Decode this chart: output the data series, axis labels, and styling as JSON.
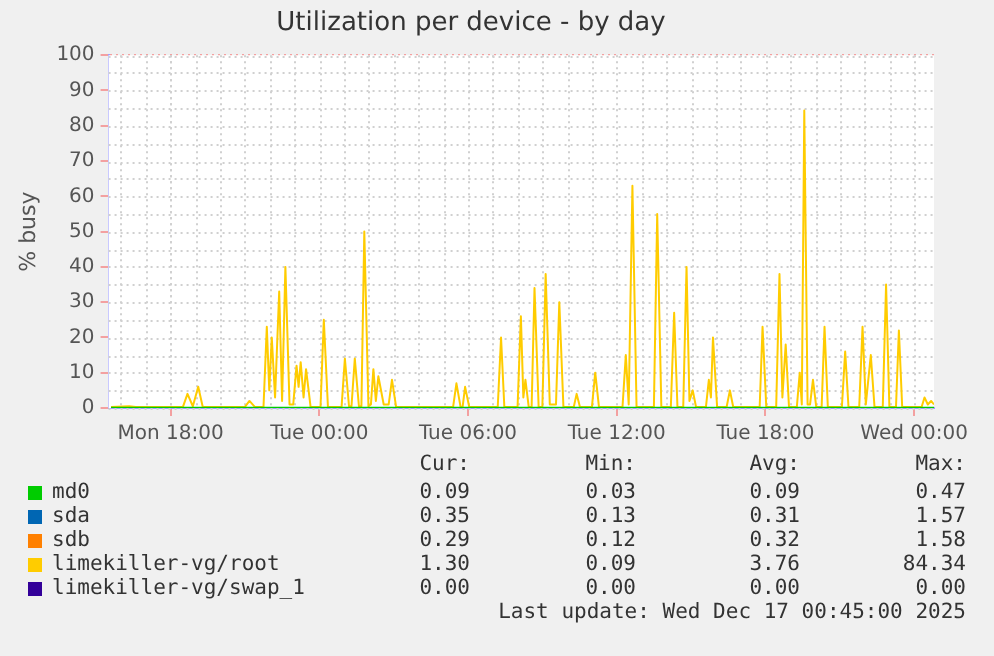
{
  "chart_data": {
    "type": "line",
    "title": "Utilization per device - by day",
    "ylabel": "% busy",
    "xlim": [
      "2025-12-15T15:30",
      "2025-12-17T00:48"
    ],
    "xticks": [
      {
        "value": "2025-12-15T18:00",
        "label": "Mon 18:00"
      },
      {
        "value": "2025-12-16T00:00",
        "label": "Tue 00:00"
      },
      {
        "value": "2025-12-16T06:00",
        "label": "Tue 06:00"
      },
      {
        "value": "2025-12-16T12:00",
        "label": "Tue 12:00"
      },
      {
        "value": "2025-12-16T18:00",
        "label": "Tue 18:00"
      },
      {
        "value": "2025-12-17T00:00",
        "label": "Wed 00:00"
      }
    ],
    "ylim": [
      0,
      100
    ],
    "yticks": [
      0,
      10,
      20,
      30,
      40,
      50,
      60,
      70,
      80,
      90,
      100
    ],
    "grid": true,
    "legend": "bottom",
    "marker": "none",
    "line_style": "solid",
    "series": [
      {
        "name": "md0",
        "color": "#00cc00",
        "x": [
          "2025-12-15T15:36",
          "2025-12-17T00:48"
        ],
        "values": [
          0.1,
          0.1
        ]
      },
      {
        "name": "sda",
        "color": "#0066b3"
      },
      {
        "name": "sdb",
        "color": "#ff8000"
      },
      {
        "name": "limekiller-vg/root",
        "color": "#ffcc00",
        "x": [
          "2025-12-15T15:36",
          "2025-12-15T16:20",
          "2025-12-15T16:36",
          "2025-12-15T18:30",
          "2025-12-15T18:41",
          "2025-12-15T18:54",
          "2025-12-15T19:07",
          "2025-12-15T19:18",
          "2025-12-15T21:00",
          "2025-12-15T21:11",
          "2025-12-15T21:24",
          "2025-12-15T21:45",
          "2025-12-15T21:53",
          "2025-12-15T21:59",
          "2025-12-15T22:05",
          "2025-12-15T22:13",
          "2025-12-15T22:23",
          "2025-12-15T22:30",
          "2025-12-15T22:38",
          "2025-12-15T22:48",
          "2025-12-15T22:57",
          "2025-12-15T23:05",
          "2025-12-15T23:10",
          "2025-12-15T23:15",
          "2025-12-15T23:22",
          "2025-12-15T23:28",
          "2025-12-15T23:39",
          "2025-12-16T00:03",
          "2025-12-16T00:11",
          "2025-12-16T00:21",
          "2025-12-16T00:54",
          "2025-12-16T01:02",
          "2025-12-16T01:12",
          "2025-12-16T01:18",
          "2025-12-16T01:26",
          "2025-12-16T01:36",
          "2025-12-16T01:42",
          "2025-12-16T01:49",
          "2025-12-16T01:59",
          "2025-12-16T02:05",
          "2025-12-16T02:11",
          "2025-12-16T02:17",
          "2025-12-16T02:23",
          "2025-12-16T02:36",
          "2025-12-16T02:48",
          "2025-12-16T02:56",
          "2025-12-16T03:06",
          "2025-12-16T05:24",
          "2025-12-16T05:32",
          "2025-12-16T05:42",
          "2025-12-16T05:47",
          "2025-12-16T05:53",
          "2025-12-16T06:03",
          "2025-12-16T07:12",
          "2025-12-16T07:20",
          "2025-12-16T07:28",
          "2025-12-16T08:00",
          "2025-12-16T08:08",
          "2025-12-16T08:14",
          "2025-12-16T08:19",
          "2025-12-16T08:27",
          "2025-12-16T08:34",
          "2025-12-16T08:41",
          "2025-12-16T08:51",
          "2025-12-16T09:00",
          "2025-12-16T09:08",
          "2025-12-16T09:18",
          "2025-12-16T09:33",
          "2025-12-16T09:41",
          "2025-12-16T09:51",
          "2025-12-16T10:16",
          "2025-12-16T10:23",
          "2025-12-16T10:31",
          "2025-12-16T11:00",
          "2025-12-16T11:08",
          "2025-12-16T11:17",
          "2025-12-16T12:14",
          "2025-12-16T12:22",
          "2025-12-16T12:29",
          "2025-12-16T12:38",
          "2025-12-16T12:48",
          "2025-12-16T13:30",
          "2025-12-16T13:38",
          "2025-12-16T13:48",
          "2025-12-16T14:11",
          "2025-12-16T14:19",
          "2025-12-16T14:27",
          "2025-12-16T14:41",
          "2025-12-16T14:49",
          "2025-12-16T14:56",
          "2025-12-16T15:04",
          "2025-12-16T15:12",
          "2025-12-16T15:36",
          "2025-12-16T15:43",
          "2025-12-16T15:48",
          "2025-12-16T15:53",
          "2025-12-16T16:03",
          "2025-12-16T16:26",
          "2025-12-16T16:34",
          "2025-12-16T16:42",
          "2025-12-16T17:46",
          "2025-12-16T17:53",
          "2025-12-16T18:02",
          "2025-12-16T18:26",
          "2025-12-16T18:34",
          "2025-12-16T18:41",
          "2025-12-16T18:49",
          "2025-12-16T18:57",
          "2025-12-16T19:16",
          "2025-12-16T19:23",
          "2025-12-16T19:28",
          "2025-12-16T19:34",
          "2025-12-16T19:42",
          "2025-12-16T19:48",
          "2025-12-16T19:55",
          "2025-12-16T20:03",
          "2025-12-16T20:16",
          "2025-12-16T20:23",
          "2025-12-16T20:31",
          "2025-12-16T21:05",
          "2025-12-16T21:13",
          "2025-12-16T21:21",
          "2025-12-16T21:47",
          "2025-12-16T21:55",
          "2025-12-16T22:03",
          "2025-12-16T22:15",
          "2025-12-16T22:24",
          "2025-12-16T22:44",
          "2025-12-16T22:52",
          "2025-12-16T23:00",
          "2025-12-16T23:16",
          "2025-12-16T23:23",
          "2025-12-16T23:31",
          "2025-12-17T00:18",
          "2025-12-17T00:25",
          "2025-12-17T00:33",
          "2025-12-17T00:41",
          "2025-12-17T00:48"
        ],
        "values": [
          0.3,
          0.5,
          0.3,
          0.3,
          4,
          0.5,
          6,
          0.3,
          0.3,
          2,
          0.3,
          0.3,
          23,
          5,
          20,
          3,
          33,
          2,
          40,
          1,
          1,
          12,
          6,
          13,
          3,
          11,
          0.3,
          0.3,
          25,
          0.3,
          0.3,
          14,
          0.5,
          0.5,
          14,
          0.5,
          0.5,
          50,
          0.5,
          1,
          11,
          2,
          9,
          1,
          1,
          8,
          0.3,
          0.3,
          7,
          0.3,
          0.3,
          6,
          0.3,
          0.3,
          20,
          0.3,
          0.3,
          26,
          3,
          8,
          0.3,
          0.3,
          34,
          0.3,
          0.3,
          38,
          1,
          1,
          30,
          0.3,
          0.3,
          4,
          0.3,
          0.3,
          10,
          0.3,
          0.3,
          15,
          1,
          63,
          0.3,
          0.3,
          55,
          0.3,
          0.3,
          27,
          0.3,
          0.3,
          40,
          2,
          5,
          0.3,
          0.3,
          8,
          3,
          20,
          0.3,
          0.3,
          5,
          0.3,
          0.3,
          23,
          0.3,
          0.3,
          38,
          3,
          18,
          0.3,
          0.3,
          10,
          1,
          84.3,
          1,
          1,
          8,
          0.3,
          0.3,
          23,
          0.3,
          0.3,
          16,
          0.3,
          0.3,
          23,
          1,
          15,
          0.3,
          0.3,
          35,
          0.3,
          0.3,
          22,
          0.3,
          0.3,
          3,
          1,
          2,
          1
        ]
      },
      {
        "name": "limekiller-vg/swap_1",
        "color": "#330099"
      }
    ],
    "annotations": [
      "Cur:",
      "Min:",
      "Avg:",
      "Max:",
      "0.09",
      "0.03",
      "0.09",
      "0.47",
      "0.35",
      "0.13",
      "0.31",
      "1.57",
      "0.29",
      "0.12",
      "0.32",
      "1.58",
      "1.30",
      "0.09",
      "3.76",
      "84.34",
      "0.00",
      "0.00",
      "0.00",
      "0.00",
      "Last update: Wed Dec 17 00:45:00 2025"
    ]
  }
}
